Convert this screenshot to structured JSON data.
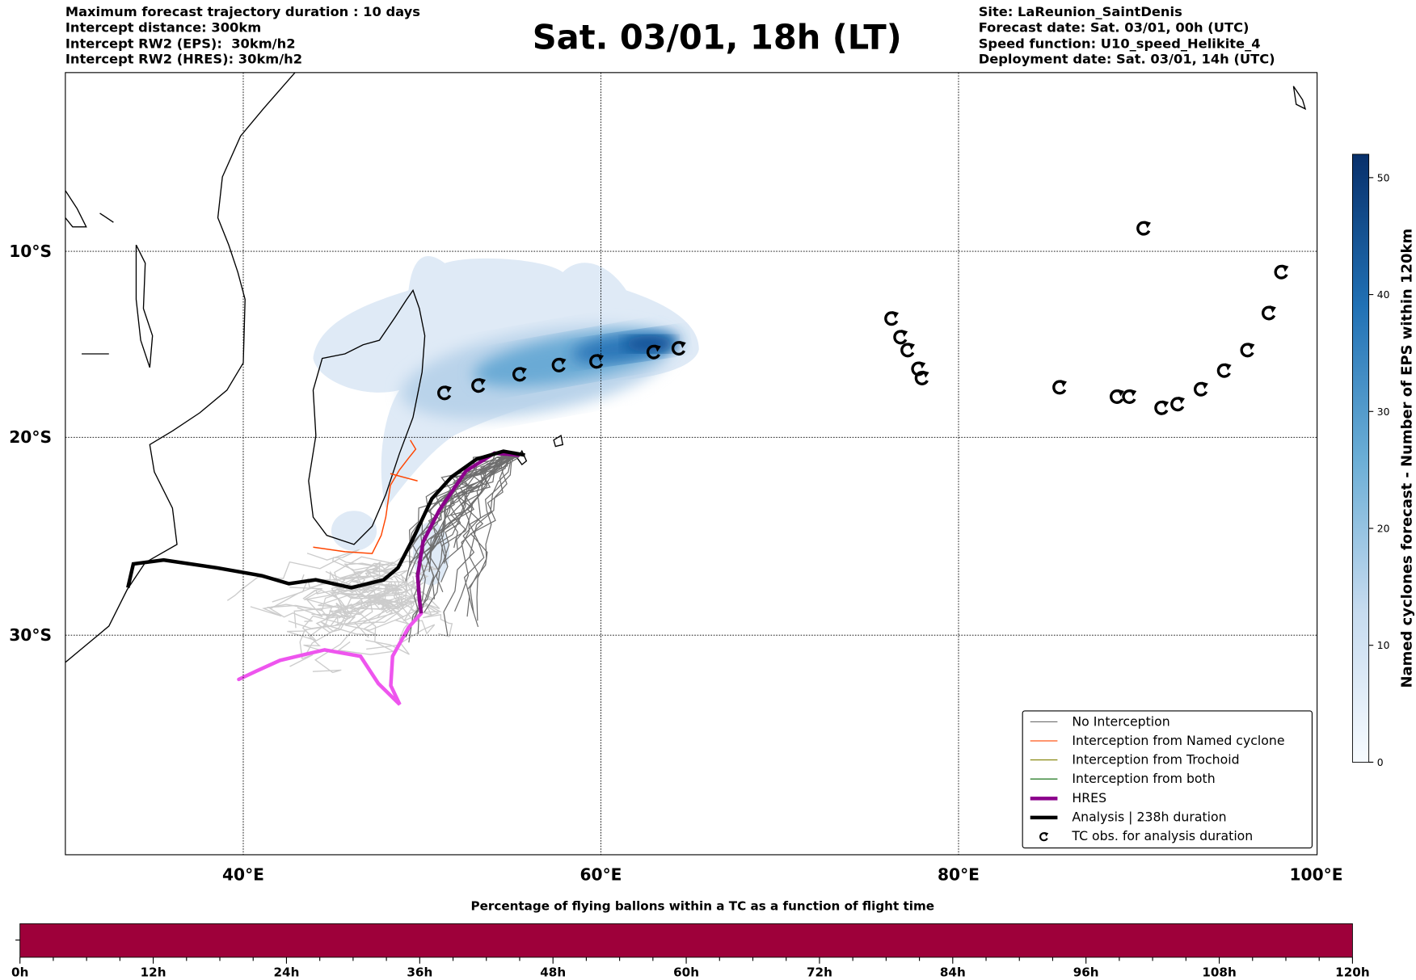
{
  "header_left": [
    "Maximum forecast trajectory duration : 10 days",
    "Intercept distance: 300km",
    "Intercept RW2 (EPS):  30km/h2",
    "Intercept RW2 (HRES): 30km/h2"
  ],
  "title": "Sat. 03/01, 18h (LT)",
  "header_right": [
    "Site: LaReunion_SaintDenis",
    "Forecast date: Sat. 03/01, 00h (UTC)",
    "Speed function: U10_speed_Helikite_4",
    "Deployment date: Sat. 03/01, 14h (UTC)"
  ],
  "colors": {
    "no_interception": "#6e6e6e",
    "named_cyclone": "#ff4500",
    "trochoid": "#808000",
    "both": "#006400",
    "hres": "#8b008b",
    "hres_late": "#ee55ee",
    "analysis": "#000000",
    "bottom_bar": "#9e003a"
  },
  "chart_data": [
    {
      "type": "map",
      "lon_ticks": [
        "40°E",
        "60°E",
        "80°E",
        "100°E"
      ],
      "lat_ticks": [
        "10°S",
        "20°S",
        "30°S"
      ],
      "lon_range": [
        30,
        100
      ],
      "lat_range": [
        0,
        -42
      ],
      "grid": true,
      "legend_placement": "lower-right",
      "legend": [
        {
          "label": "No Interception",
          "style": "no_interception"
        },
        {
          "label": "Interception from Named cyclone",
          "style": "named_cyclone"
        },
        {
          "label": "Interception from Trochoid",
          "style": "trochoid"
        },
        {
          "label": "Interception from both",
          "style": "both"
        },
        {
          "label": "HRES",
          "style": "hres"
        },
        {
          "label": "Analysis | 238h duration",
          "style": "analysis"
        },
        {
          "label": "TC obs. for analysis duration",
          "style": "tc"
        }
      ],
      "tc_obs": [
        [
          51.2,
          -17.6
        ],
        [
          53.1,
          -17.2
        ],
        [
          55.4,
          -16.6
        ],
        [
          57.6,
          -16.1
        ],
        [
          59.7,
          -15.9
        ],
        [
          62.9,
          -15.4
        ],
        [
          64.3,
          -15.2
        ],
        [
          76.2,
          -13.6
        ],
        [
          76.7,
          -14.6
        ],
        [
          77.1,
          -15.3
        ],
        [
          77.7,
          -16.3
        ],
        [
          77.9,
          -16.8
        ],
        [
          85.6,
          -17.3
        ],
        [
          88.8,
          -17.8
        ],
        [
          89.5,
          -17.8
        ],
        [
          91.3,
          -18.4
        ],
        [
          92.2,
          -18.2
        ],
        [
          93.5,
          -17.4
        ],
        [
          94.8,
          -16.4
        ],
        [
          96.1,
          -15.3
        ],
        [
          97.3,
          -13.3
        ],
        [
          98.0,
          -11.1
        ],
        [
          90.3,
          -8.7
        ]
      ],
      "analysis_track": [
        [
          55.7,
          -20.9
        ],
        [
          54.5,
          -20.7
        ],
        [
          53,
          -21.1
        ],
        [
          51.6,
          -22
        ],
        [
          50.5,
          -23.1
        ],
        [
          49.4,
          -25.2
        ],
        [
          48.6,
          -26.6
        ],
        [
          47.8,
          -27.2
        ],
        [
          46,
          -27.6
        ],
        [
          44,
          -27.2
        ],
        [
          42.5,
          -27.4
        ],
        [
          41,
          -27
        ],
        [
          38.5,
          -26.6
        ],
        [
          35.5,
          -26.2
        ],
        [
          33.8,
          -26.4
        ],
        [
          33.5,
          -27.6
        ]
      ],
      "hres_track": [
        [
          55.4,
          -20.9
        ],
        [
          54,
          -20.8
        ],
        [
          52.4,
          -21.7
        ],
        [
          50.9,
          -23.7
        ],
        [
          50,
          -25.3
        ],
        [
          49.7,
          -27
        ],
        [
          49.8,
          -28.2
        ],
        [
          49.9,
          -28.9
        ]
      ],
      "hres_late_track": [
        [
          49.9,
          -28.9
        ],
        [
          49.2,
          -29.6
        ],
        [
          48.3,
          -31
        ],
        [
          48.2,
          -32.4
        ],
        [
          48.7,
          -33.3
        ],
        [
          47.5,
          -32.3
        ],
        [
          46.5,
          -31
        ],
        [
          44.5,
          -30.7
        ],
        [
          42,
          -31.2
        ],
        [
          40.7,
          -31.7
        ],
        [
          39.7,
          -32.1
        ]
      ]
    },
    {
      "type": "heatmap",
      "colorbar_label": "Named cyclones forecast - Number of EPS within 120km",
      "ticks": [
        "0",
        "10",
        "20",
        "30",
        "40",
        "50"
      ],
      "range": [
        0,
        52
      ]
    },
    {
      "type": "bar",
      "title": "Percentage of flying ballons within a TC as a function of flight time",
      "ticks": [
        "0h",
        "12h",
        "24h",
        "36h",
        "48h",
        "60h",
        "72h",
        "84h",
        "96h",
        "108h",
        "120h"
      ],
      "range_hours": [
        0,
        120
      ],
      "values_percent": [
        0
      ]
    }
  ]
}
